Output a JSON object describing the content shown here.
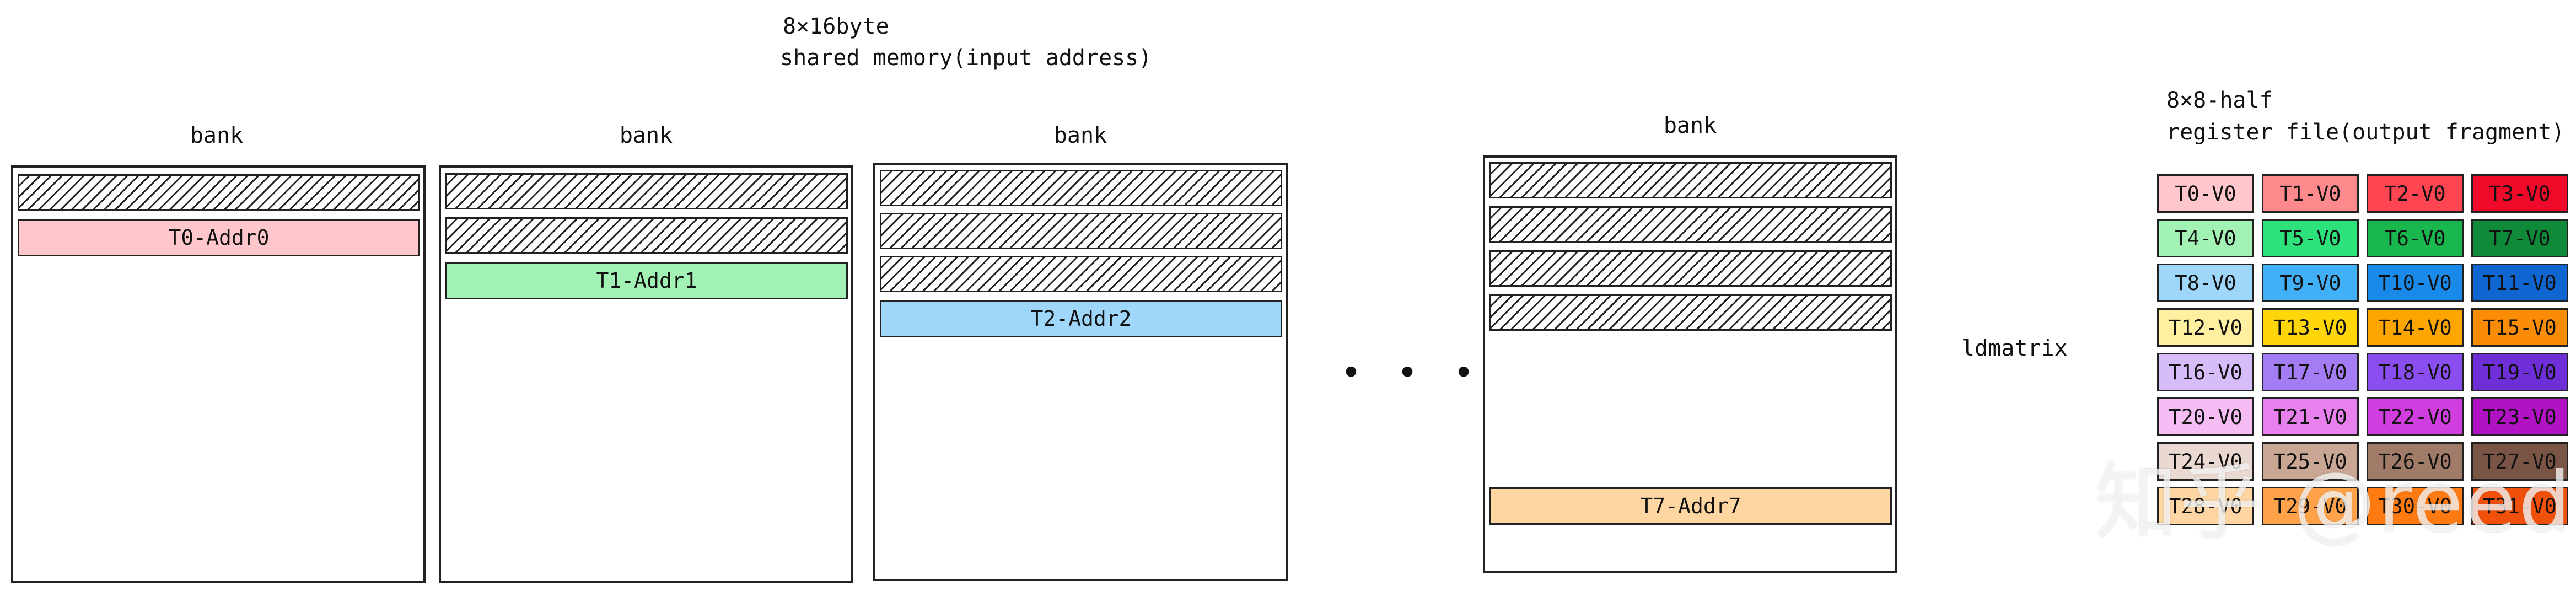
{
  "shared_memory": {
    "size_label": "8×16byte",
    "title": "shared memory(input address)",
    "banks": [
      {
        "label": "bank",
        "address": "T0-Addr0",
        "color": "#ffc7cc"
      },
      {
        "label": "bank",
        "address": "T1-Addr1",
        "color": "#a3f2b5"
      },
      {
        "label": "bank",
        "address": "T2-Addr2",
        "color": "#9fd7fb"
      },
      {
        "label": "bank",
        "address": "T7-Addr7",
        "color": "#fed6a2"
      }
    ],
    "ellipsis": "• • •"
  },
  "operation": {
    "label": "ldmatrix"
  },
  "register_file": {
    "size_label": "8×8-half",
    "title": "register file(output fragment)",
    "rows": [
      [
        {
          "t": "T0-V0",
          "c": "#ffc7cc"
        },
        {
          "t": "T1-V0",
          "c": "#ff8a8e"
        },
        {
          "t": "T2-V0",
          "c": "#ff4452"
        },
        {
          "t": "T3-V0",
          "c": "#ee0a28"
        }
      ],
      [
        {
          "t": "T4-V0",
          "c": "#a3f2b5"
        },
        {
          "t": "T5-V0",
          "c": "#2ee27b"
        },
        {
          "t": "T6-V0",
          "c": "#19b84f"
        },
        {
          "t": "T7-V0",
          "c": "#0e8a38"
        }
      ],
      [
        {
          "t": "T8-V0",
          "c": "#9fd7fb"
        },
        {
          "t": "T9-V0",
          "c": "#42b0f7"
        },
        {
          "t": "T10-V0",
          "c": "#1989ea"
        },
        {
          "t": "T11-V0",
          "c": "#0f66d0"
        }
      ],
      [
        {
          "t": "T12-V0",
          "c": "#fff0a1"
        },
        {
          "t": "T13-V0",
          "c": "#ffd60a"
        },
        {
          "t": "T14-V0",
          "c": "#ffa500"
        },
        {
          "t": "T15-V0",
          "c": "#fb8c05"
        }
      ],
      [
        {
          "t": "T16-V0",
          "c": "#d6bdf9"
        },
        {
          "t": "T17-V0",
          "c": "#a47df5"
        },
        {
          "t": "T18-V0",
          "c": "#8a4ef0"
        },
        {
          "t": "T19-V0",
          "c": "#6e2fd9"
        }
      ],
      [
        {
          "t": "T20-V0",
          "c": "#f5bdf4"
        },
        {
          "t": "T21-V0",
          "c": "#e880ee"
        },
        {
          "t": "T22-V0",
          "c": "#d03ee0"
        },
        {
          "t": "T23-V0",
          "c": "#b012c4"
        }
      ],
      [
        {
          "t": "T24-V0",
          "c": "#ead9d0"
        },
        {
          "t": "T25-V0",
          "c": "#c9a794"
        },
        {
          "t": "T26-V0",
          "c": "#a07c68"
        },
        {
          "t": "T27-V0",
          "c": "#7a5444"
        }
      ],
      [
        {
          "t": "T28-V0",
          "c": "#ffd6a3"
        },
        {
          "t": "T29-V0",
          "c": "#ffa24a"
        },
        {
          "t": "T30-V0",
          "c": "#ff7a10"
        },
        {
          "t": "T31-V0",
          "c": "#f0500a"
        }
      ]
    ]
  },
  "watermark": "知乎 @reed"
}
